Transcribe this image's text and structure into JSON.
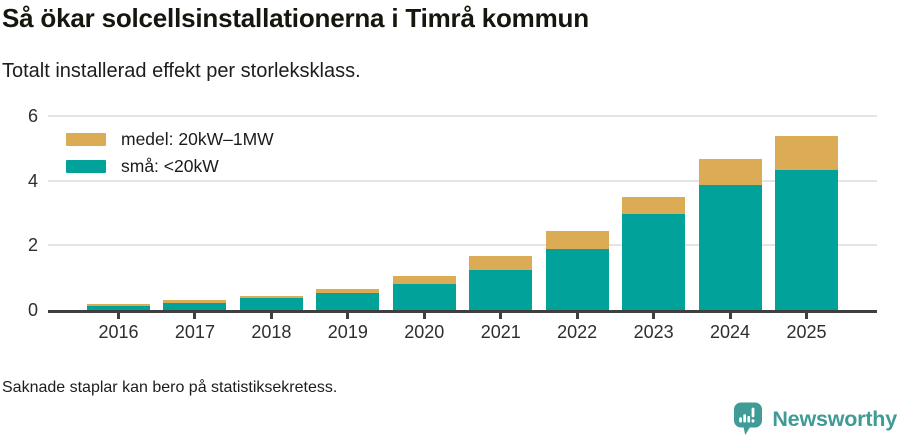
{
  "header": {
    "title": "Så ökar solcellsinstallationerna i Timrå kommun",
    "subtitle": "Totalt installerad effekt per storleksklass."
  },
  "chart_data": {
    "type": "bar",
    "stacked": true,
    "title": "Så ökar solcellsinstallationerna i Timrå kommun",
    "subtitle": "Totalt installerad effekt per storleksklass.",
    "categories": [
      "2016",
      "2017",
      "2018",
      "2019",
      "2020",
      "2021",
      "2022",
      "2023",
      "2024",
      "2025"
    ],
    "series": [
      {
        "name": "medel: 20kW–1MW",
        "key": "medel",
        "color": "#dbab55",
        "values": [
          0.05,
          0.07,
          0.05,
          0.14,
          0.26,
          0.44,
          0.55,
          0.52,
          0.8,
          1.05
        ]
      },
      {
        "name": "små: <20kW",
        "key": "sma",
        "color": "#00a29a",
        "values": [
          0.13,
          0.23,
          0.37,
          0.52,
          0.8,
          1.24,
          1.9,
          2.97,
          3.86,
          4.33
        ]
      }
    ],
    "totals": [
      0.18,
      0.3,
      0.42,
      0.66,
      1.06,
      1.68,
      2.45,
      3.49,
      4.66,
      5.38
    ],
    "ylim": [
      0,
      6
    ],
    "yticks": [
      0,
      2,
      4,
      6
    ],
    "grid": "horizontal",
    "legend_position": "top-left"
  },
  "footer": {
    "note": "Saknade staplar kan bero på statistiksekretess.",
    "brand": "Newsworthy"
  },
  "colors": {
    "teal": "#00a29a",
    "gold": "#dbab55",
    "gridline": "#e4e4e4",
    "axis": "#3f3f3f",
    "logo_teal": "#3f9b95"
  }
}
